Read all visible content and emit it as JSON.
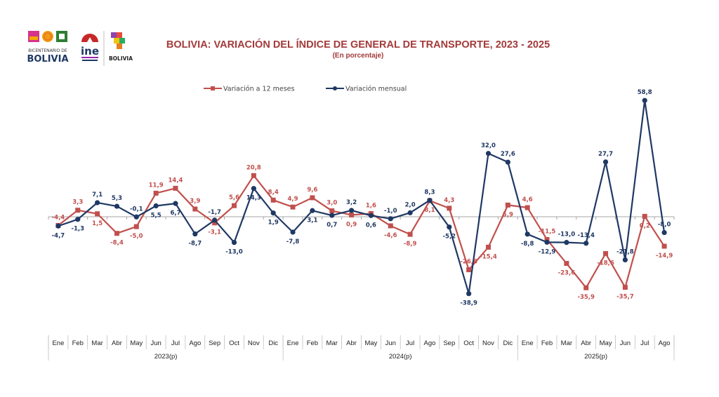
{
  "header": {
    "logos": [
      "bicentenario-de-bolivia-logo",
      "ine-logo",
      "estado-plurinacional-de-bolivia-logo"
    ],
    "logo_texts": {
      "bicentenario": [
        "BICENTENARIO DE",
        "BOLIVIA"
      ],
      "ine": "ine",
      "estado": "BOLIVIA"
    }
  },
  "chart_data": {
    "type": "line",
    "title": "BOLIVIA: VARIACIÓN DEL ÍNDICE DE GENERAL DE TRANSPORTE,  2023 - 2025",
    "subtitle": "(En porcentaje)",
    "xlabel": "",
    "ylabel": "",
    "ylim": [
      -45,
      62
    ],
    "grid": false,
    "legend_position": "top-center",
    "categories": [
      "Ene",
      "Feb",
      "Mar",
      "Abr",
      "May",
      "Jun",
      "Jul",
      "Ago",
      "Sep",
      "Oct",
      "Nov",
      "Dic",
      "Ene",
      "Feb",
      "Mar",
      "Abr",
      "May",
      "Jun",
      "Jul",
      "Ago",
      "Sep",
      "Oct",
      "Nov",
      "Dic",
      "Ene",
      "Feb",
      "Mar",
      "Abr",
      "May",
      "Jun",
      "Jul",
      "Ago"
    ],
    "groups": [
      {
        "label": "2023(p)",
        "count": 12
      },
      {
        "label": "2024(p)",
        "count": 12
      },
      {
        "label": "2025(p)",
        "count": 8
      }
    ],
    "series": [
      {
        "name": "Variación a 12 meses",
        "color": "#c0504d",
        "marker": "square",
        "values": [
          -4.4,
          3.3,
          1.5,
          -8.4,
          -5.0,
          11.9,
          14.4,
          3.9,
          -3.1,
          5.6,
          20.8,
          8.4,
          4.9,
          9.6,
          3.0,
          0.9,
          1.6,
          -4.6,
          -8.9,
          8.1,
          4.3,
          -26.8,
          -15.4,
          5.9,
          4.6,
          -11.5,
          -23.6,
          -35.9,
          -18.6,
          -35.7,
          0.2,
          -14.9
        ],
        "labels": [
          "-4,4",
          "3,3",
          "1,5",
          "-8,4",
          "-5,0",
          "11,9",
          "14,4",
          "3,9",
          "-3,1",
          "5,6",
          "20,8",
          "8,4",
          "4,9",
          "9,6",
          "3,0",
          "0,9",
          "1,6",
          "-4,6",
          "-8,9",
          "8,1",
          "4,3",
          "-26,8",
          "-15,4",
          "5,9",
          "4,6",
          "-11,5",
          "-23,6",
          "-35,9",
          "-18,6",
          "-35,7",
          "0,2",
          "-14,9"
        ]
      },
      {
        "name": "Variación mensual",
        "color": "#1f3864",
        "marker": "circle",
        "values": [
          -4.7,
          -1.3,
          7.1,
          5.3,
          -0.1,
          5.5,
          6.7,
          -8.7,
          -1.7,
          -13.0,
          14.3,
          1.9,
          -7.8,
          3.1,
          0.7,
          3.2,
          0.6,
          -1.0,
          2.0,
          8.3,
          -5.2,
          -38.9,
          32.0,
          27.6,
          -8.8,
          -12.9,
          -13.0,
          -13.4,
          27.7,
          -21.8,
          58.8,
          -8.0
        ],
        "labels": [
          "-4,7",
          "-1,3",
          "7,1",
          "5,3",
          "-0,1",
          "5,5",
          "6,7",
          "-8,7",
          "-1,7",
          "-13,0",
          "14,3",
          "1,9",
          "-7,8",
          "3,1",
          "0,7",
          "3,2",
          "0,6",
          "-1,0",
          "2,0",
          "8,3",
          "-5,2",
          "-38,9",
          "32,0",
          "27,6",
          "-8,8",
          "-12,9",
          "-13,0",
          "-13,4",
          "27,7",
          "-21,8",
          "58,8",
          "-8,0"
        ]
      }
    ]
  }
}
